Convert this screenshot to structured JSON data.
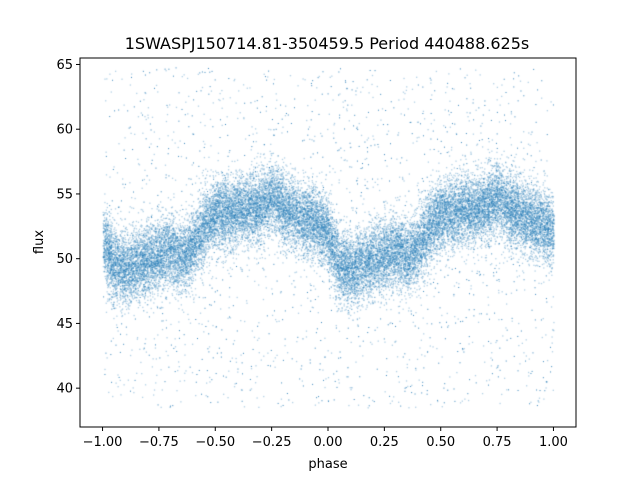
{
  "chart_data": {
    "type": "scatter",
    "title": "1SWASPJ150714.81-350459.5 Period 440488.625s",
    "xlabel": "phase",
    "ylabel": "flux",
    "xlim": [
      -1.1,
      1.1
    ],
    "ylim": [
      37.0,
      65.5
    ],
    "xticks": [
      -1.0,
      -0.75,
      -0.5,
      -0.25,
      0.0,
      0.25,
      0.5,
      0.75,
      1.0
    ],
    "xtick_labels": [
      "−1.00",
      "−0.75",
      "−0.50",
      "−0.25",
      "0.00",
      "0.25",
      "0.50",
      "0.75",
      "1.00"
    ],
    "yticks": [
      40,
      45,
      50,
      55,
      60,
      65
    ],
    "ytick_labels": [
      "40",
      "45",
      "50",
      "55",
      "60",
      "65"
    ],
    "grid": false,
    "point_color": "#1f77b4",
    "series": [
      {
        "x_range": [
          -1.0,
          1.0
        ],
        "phase_curve": {
          "phase": [
            0.0,
            0.05,
            0.1,
            0.15,
            0.2,
            0.25,
            0.3,
            0.35,
            0.4,
            0.45,
            0.5,
            0.55,
            0.6,
            0.65,
            0.7,
            0.75,
            0.8,
            0.85,
            0.9,
            0.95,
            1.0
          ],
          "flux": [
            51.5,
            49.5,
            49.2,
            49.5,
            50.0,
            50.3,
            50.8,
            50.0,
            51.0,
            52.5,
            53.5,
            53.5,
            53.8,
            53.8,
            54.0,
            54.8,
            54.0,
            53.5,
            53.0,
            52.8,
            52.0
          ]
        },
        "spread": 2.5,
        "outlier_range": [
          38.5,
          64.8
        ]
      }
    ]
  }
}
